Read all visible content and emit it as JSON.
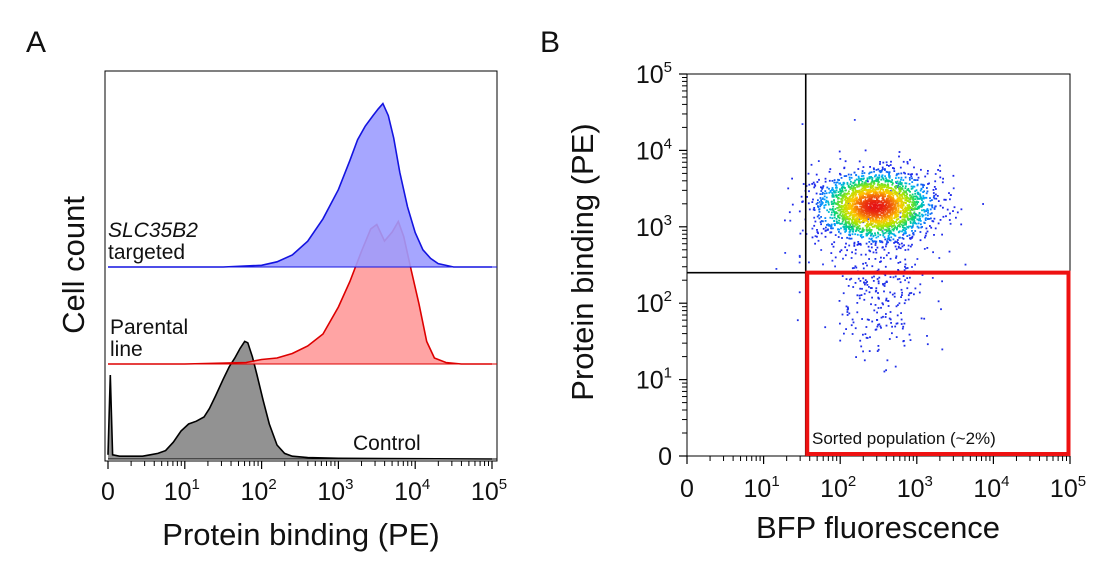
{
  "figure": {
    "background": "#ffffff"
  },
  "chart_data": [
    {
      "id": "A",
      "type": "area",
      "panel_label": "A",
      "xlabel": "Protein binding (PE)",
      "ylabel": "Cell count",
      "x_scale": "log-decade",
      "xlim_decades": [
        0,
        5
      ],
      "x_ticks": [
        {
          "base": "0",
          "exp": ""
        },
        {
          "base": "10",
          "exp": "1"
        },
        {
          "base": "10",
          "exp": "2"
        },
        {
          "base": "10",
          "exp": "3"
        },
        {
          "base": "10",
          "exp": "4"
        },
        {
          "base": "10",
          "exp": "5"
        }
      ],
      "series": [
        {
          "name": "Control",
          "label_lines": [
            "Control"
          ],
          "label_style": [
            "normal"
          ],
          "fill": "#7f7f7f",
          "stroke": "#000000",
          "fill_opacity": 0.85,
          "baseline": 0,
          "points": [
            [
              0,
              0.03
            ],
            [
              0.03,
              0.6
            ],
            [
              0.06,
              0.03
            ],
            [
              0.15,
              0.02
            ],
            [
              0.3,
              0.02
            ],
            [
              0.45,
              0.02
            ],
            [
              0.55,
              0.03
            ],
            [
              0.65,
              0.04
            ],
            [
              0.75,
              0.06
            ],
            [
              0.85,
              0.12
            ],
            [
              0.95,
              0.2
            ],
            [
              1.05,
              0.25
            ],
            [
              1.15,
              0.27
            ],
            [
              1.25,
              0.3
            ],
            [
              1.32,
              0.36
            ],
            [
              1.4,
              0.45
            ],
            [
              1.5,
              0.57
            ],
            [
              1.58,
              0.66
            ],
            [
              1.65,
              0.72
            ],
            [
              1.72,
              0.79
            ],
            [
              1.78,
              0.84
            ],
            [
              1.82,
              0.83
            ],
            [
              1.88,
              0.73
            ],
            [
              1.94,
              0.6
            ],
            [
              2.02,
              0.42
            ],
            [
              2.1,
              0.25
            ],
            [
              2.2,
              0.1
            ],
            [
              2.3,
              0.04
            ],
            [
              2.4,
              0.02
            ],
            [
              2.6,
              0.01
            ],
            [
              3.0,
              0.005
            ],
            [
              5,
              0
            ]
          ]
        },
        {
          "name": "Parental line",
          "label_lines": [
            "Parental",
            "line"
          ],
          "label_style": [
            "normal",
            "normal"
          ],
          "fill": "#ff9a9a",
          "stroke": "#dd0000",
          "fill_opacity": 0.9,
          "baseline": 1,
          "points": [
            [
              0,
              0
            ],
            [
              1.0,
              0
            ],
            [
              1.8,
              0.01
            ],
            [
              2.0,
              0.03
            ],
            [
              2.2,
              0.04
            ],
            [
              2.4,
              0.07
            ],
            [
              2.6,
              0.12
            ],
            [
              2.8,
              0.2
            ],
            [
              3.0,
              0.38
            ],
            [
              3.15,
              0.55
            ],
            [
              3.3,
              0.75
            ],
            [
              3.42,
              0.9
            ],
            [
              3.5,
              0.93
            ],
            [
              3.6,
              0.82
            ],
            [
              3.7,
              0.88
            ],
            [
              3.78,
              0.95
            ],
            [
              3.85,
              0.85
            ],
            [
              3.95,
              0.62
            ],
            [
              4.05,
              0.4
            ],
            [
              4.15,
              0.15
            ],
            [
              4.25,
              0.04
            ],
            [
              4.4,
              0.01
            ],
            [
              4.6,
              0
            ],
            [
              5,
              0
            ]
          ]
        },
        {
          "name": "SLC35B2 targeted",
          "label_lines": [
            "SLC35B2",
            "targeted"
          ],
          "label_style": [
            "italic",
            "normal"
          ],
          "fill": "#9c9cff",
          "stroke": "#1414e0",
          "fill_opacity": 0.9,
          "baseline": 2,
          "points": [
            [
              0,
              0
            ],
            [
              1.5,
              0
            ],
            [
              2.0,
              0.01
            ],
            [
              2.2,
              0.03
            ],
            [
              2.4,
              0.07
            ],
            [
              2.6,
              0.15
            ],
            [
              2.8,
              0.28
            ],
            [
              3.0,
              0.45
            ],
            [
              3.15,
              0.62
            ],
            [
              3.25,
              0.74
            ],
            [
              3.35,
              0.82
            ],
            [
              3.45,
              0.88
            ],
            [
              3.52,
              0.92
            ],
            [
              3.58,
              0.95
            ],
            [
              3.65,
              0.88
            ],
            [
              3.72,
              0.75
            ],
            [
              3.8,
              0.55
            ],
            [
              3.9,
              0.35
            ],
            [
              4.0,
              0.2
            ],
            [
              4.1,
              0.1
            ],
            [
              4.2,
              0.05
            ],
            [
              4.3,
              0.02
            ],
            [
              4.5,
              0
            ],
            [
              5,
              0
            ]
          ]
        }
      ]
    },
    {
      "id": "B",
      "type": "scatter",
      "panel_label": "B",
      "xlabel": "BFP fluorescence",
      "ylabel": "Protein binding (PE)",
      "x_scale": "log-decade",
      "y_scale": "log-decade",
      "xlim_decades": [
        0,
        5
      ],
      "ylim_decades": [
        0,
        5
      ],
      "x_ticks": [
        {
          "base": "0",
          "exp": ""
        },
        {
          "base": "10",
          "exp": "1"
        },
        {
          "base": "10",
          "exp": "2"
        },
        {
          "base": "10",
          "exp": "3"
        },
        {
          "base": "10",
          "exp": "4"
        },
        {
          "base": "10",
          "exp": "5"
        }
      ],
      "y_ticks": [
        {
          "base": "0",
          "exp": ""
        },
        {
          "base": "10",
          "exp": "1"
        },
        {
          "base": "10",
          "exp": "2"
        },
        {
          "base": "10",
          "exp": "3"
        },
        {
          "base": "10",
          "exp": "4"
        },
        {
          "base": "10",
          "exp": "5"
        }
      ],
      "quadrant_gate": {
        "x": 1.55,
        "y": 2.4
      },
      "sorted_gate": {
        "x_min": 1.55,
        "x_max": 5.0,
        "y_min": 0.0,
        "y_max": 2.4,
        "color": "#ee1111"
      },
      "annotation": "Sorted population (~2%)",
      "populations": [
        {
          "name": "main",
          "count": 2600,
          "center": [
            2.45,
            3.28
          ],
          "spread": [
            0.36,
            0.22
          ],
          "color": "density"
        },
        {
          "name": "tail",
          "count": 260,
          "center": [
            2.5,
            2.15
          ],
          "spread": [
            0.3,
            0.45
          ],
          "color": "#1f2fe8"
        },
        {
          "name": "scatter",
          "count": 90,
          "center": [
            2.3,
            3.0
          ],
          "spread": [
            0.65,
            0.55
          ],
          "color": "#2a3cf0"
        }
      ]
    }
  ]
}
